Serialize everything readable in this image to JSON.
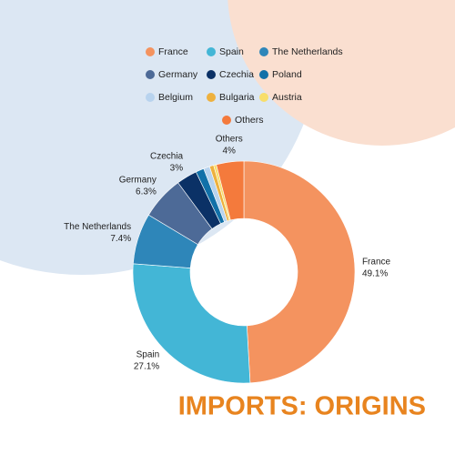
{
  "chart_data": {
    "type": "donut",
    "title": "IMPORTS: ORIGINS",
    "categories": [
      "France",
      "Spain",
      "The Netherlands",
      "Germany",
      "Czechia",
      "Poland",
      "Belgium",
      "Bulgaria",
      "Austria",
      "Others"
    ],
    "values": [
      49.1,
      27.1,
      7.4,
      6.3,
      3,
      1.2,
      0.9,
      0.6,
      0.4,
      4
    ],
    "value_labels": [
      "49.1%",
      "27.1%",
      "7.4%",
      "6.3%",
      "3%",
      null,
      null,
      null,
      null,
      "4%"
    ],
    "colors": [
      "#F4935F",
      "#43B6D6",
      "#2E86B9",
      "#4D6A97",
      "#0B3166",
      "#1170A8",
      "#B8D3EE",
      "#EEB13E",
      "#F8DE6B",
      "#F47A3C"
    ]
  }
}
